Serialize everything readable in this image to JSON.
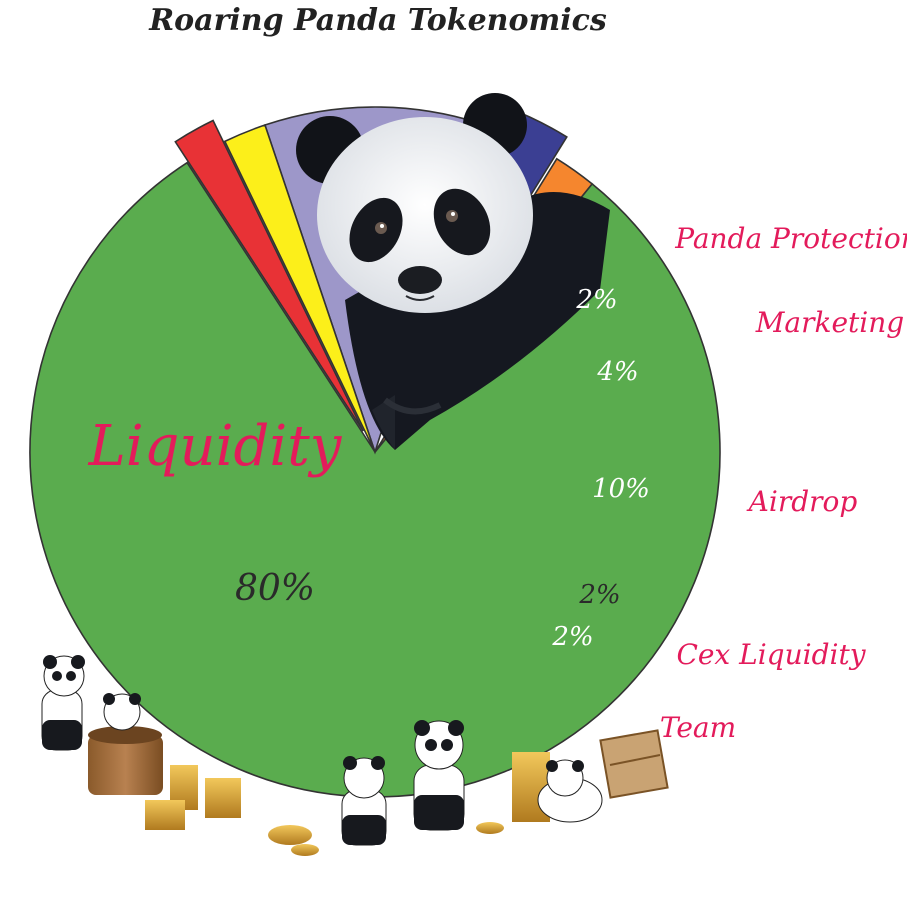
{
  "chart_data": {
    "type": "pie",
    "title": "Roaring Panda Tokenomics",
    "slices": [
      {
        "name": "Liquidity",
        "value": 80,
        "label": "80%",
        "color": "#5aac4e"
      },
      {
        "name": "Panda Protection",
        "value": 2,
        "label": "2%",
        "color": "#f5862e"
      },
      {
        "name": "Marketing",
        "value": 4,
        "label": "4%",
        "color": "#3b3f93"
      },
      {
        "name": "Airdrop",
        "value": 10,
        "label": "10%",
        "color": "#9d97c9"
      },
      {
        "name": "Cex Liquidity",
        "value": 2,
        "label": "2%",
        "color": "#fcef1a"
      },
      {
        "name": "Team",
        "value": 2,
        "label": "2%",
        "color": "#e83236"
      }
    ],
    "label_color": "#e31b5b",
    "outline_color": "#333333"
  }
}
